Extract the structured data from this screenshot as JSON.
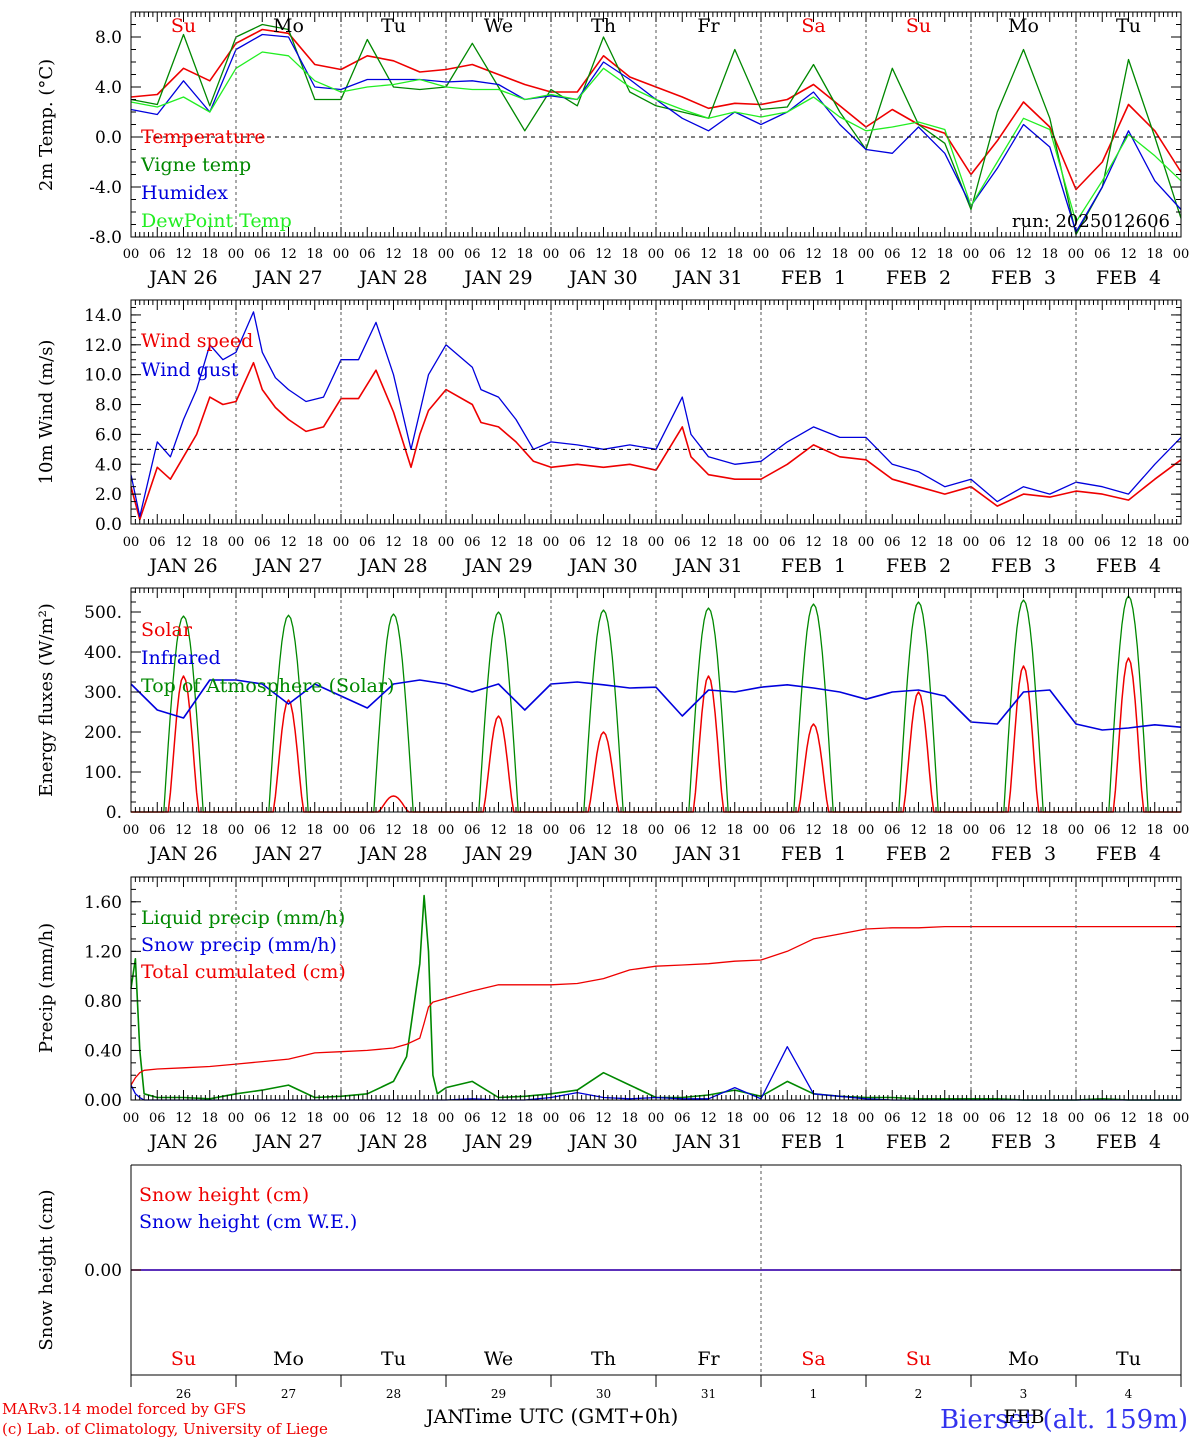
{
  "chart_data": [
    {
      "type": "line",
      "id": "temp",
      "ylabel": "2m Temp. (°C)",
      "ylim": [
        -8,
        10
      ],
      "yticks": [
        "-8.0",
        "-4.0",
        "0.0",
        "4.0",
        "8.0"
      ],
      "ytick_values": [
        -8,
        -4,
        0,
        4,
        8
      ],
      "ref_line": 0,
      "weekday_labels": true,
      "run_label": "run: 2025012606",
      "x_hours": [
        0,
        6,
        12,
        18,
        24,
        30,
        36,
        42,
        48,
        54,
        60,
        66,
        72,
        78,
        84,
        90,
        96,
        102,
        108,
        114,
        120,
        126,
        132,
        138,
        144,
        150,
        156,
        162,
        168,
        174,
        180,
        186,
        192,
        198,
        204,
        210,
        216,
        222,
        228,
        234,
        240
      ],
      "series": [
        {
          "name": "Temperature",
          "color": "#ee0000",
          "values": [
            3.2,
            3.4,
            5.5,
            4.5,
            7.5,
            8.6,
            8.3,
            5.8,
            5.4,
            6.5,
            6.1,
            5.2,
            5.4,
            5.8,
            5.0,
            4.2,
            3.6,
            3.6,
            6.5,
            4.8,
            4.0,
            3.2,
            2.3,
            2.7,
            2.6,
            3.0,
            4.2,
            2.5,
            0.8,
            2.2,
            1.0,
            0.3,
            -3.0,
            -0.3,
            2.8,
            0.8,
            -4.2,
            -2.0,
            2.6,
            0.5,
            -2.8
          ]
        },
        {
          "name": "Vigne temp",
          "color": "#008800",
          "values": [
            3.0,
            2.6,
            8.2,
            2.5,
            8.0,
            9.0,
            8.6,
            3.0,
            3.0,
            7.8,
            4.0,
            3.8,
            4.0,
            7.5,
            4.0,
            0.5,
            3.8,
            2.5,
            8.0,
            3.6,
            2.5,
            2.0,
            1.5,
            7.0,
            2.2,
            2.4,
            5.8,
            2.0,
            -1.0,
            5.5,
            1.0,
            -0.5,
            -5.8,
            2.0,
            7.0,
            1.5,
            -7.8,
            -4.0,
            6.2,
            0.0,
            -6.5
          ]
        },
        {
          "name": "Humidex",
          "color": "#0000dd",
          "values": [
            2.2,
            1.8,
            4.5,
            2.0,
            7.0,
            8.2,
            8.0,
            4.0,
            3.8,
            4.6,
            4.6,
            4.6,
            4.4,
            4.5,
            4.2,
            3.0,
            3.3,
            3.0,
            6.0,
            4.6,
            3.0,
            1.5,
            0.5,
            2.0,
            1.0,
            2.0,
            3.6,
            1.0,
            -1.0,
            -1.3,
            0.8,
            -1.3,
            -5.5,
            -2.5,
            1.0,
            -0.8,
            -7.6,
            -4.0,
            0.5,
            -3.5,
            -5.8
          ]
        },
        {
          "name": "DewPoint Temp",
          "color": "#22ee22",
          "values": [
            2.8,
            2.4,
            3.2,
            2.0,
            5.5,
            6.8,
            6.5,
            4.5,
            3.6,
            4.0,
            4.2,
            4.6,
            4.0,
            3.8,
            3.8,
            3.0,
            3.4,
            3.0,
            5.5,
            4.0,
            3.0,
            2.2,
            1.5,
            2.0,
            1.6,
            2.0,
            3.2,
            1.6,
            0.5,
            0.8,
            1.2,
            0.6,
            -5.5,
            -2.0,
            1.5,
            0.6,
            -6.8,
            -3.5,
            0.2,
            -1.5,
            -3.5
          ]
        }
      ]
    },
    {
      "type": "line",
      "id": "wind",
      "ylabel": "10m Wind (m/s)",
      "ylim": [
        0,
        15
      ],
      "yticks": [
        "0.0",
        "2.0",
        "4.0",
        "6.0",
        "8.0",
        "10.0",
        "12.0",
        "14.0"
      ],
      "ytick_values": [
        0,
        2,
        4,
        6,
        8,
        10,
        12,
        14
      ],
      "ref_line": 5,
      "x_hours": [
        0,
        2,
        6,
        9,
        12,
        15,
        18,
        21,
        24,
        28,
        30,
        33,
        36,
        40,
        44,
        48,
        52,
        56,
        60,
        64,
        66,
        68,
        72,
        78,
        80,
        84,
        88,
        92,
        96,
        102,
        108,
        114,
        120,
        126,
        128,
        132,
        138,
        144,
        150,
        156,
        162,
        168,
        174,
        180,
        186,
        192,
        198,
        204,
        210,
        216,
        222,
        228,
        234,
        240
      ],
      "series": [
        {
          "name": "Wind speed",
          "color": "#ee0000",
          "values": [
            2.5,
            0.3,
            3.8,
            3.0,
            4.5,
            6.0,
            8.5,
            8.0,
            8.2,
            10.8,
            9.0,
            7.8,
            7.0,
            6.2,
            6.5,
            8.4,
            8.4,
            10.3,
            7.5,
            3.8,
            6.0,
            7.6,
            9.0,
            8.0,
            6.8,
            6.5,
            5.5,
            4.2,
            3.8,
            4.0,
            3.8,
            4.0,
            3.6,
            6.5,
            4.5,
            3.3,
            3.0,
            3.0,
            4.0,
            5.3,
            4.5,
            4.3,
            3.0,
            2.5,
            2.0,
            2.5,
            1.2,
            2.0,
            1.8,
            2.2,
            2.0,
            1.6,
            3.0,
            4.3
          ]
        },
        {
          "name": "Wind gust",
          "color": "#0000dd",
          "values": [
            3.3,
            0.5,
            5.5,
            4.5,
            7.0,
            9.0,
            12.0,
            11.0,
            11.5,
            14.2,
            11.5,
            9.8,
            9.0,
            8.2,
            8.5,
            11.0,
            11.0,
            13.5,
            10.0,
            5.0,
            7.5,
            10.0,
            12.0,
            10.5,
            9.0,
            8.5,
            7.0,
            5.0,
            5.5,
            5.3,
            5.0,
            5.3,
            5.0,
            8.5,
            6.0,
            4.5,
            4.0,
            4.2,
            5.5,
            6.5,
            5.8,
            5.8,
            4.0,
            3.5,
            2.5,
            3.0,
            1.5,
            2.5,
            2.0,
            2.8,
            2.5,
            2.0,
            4.0,
            5.8
          ]
        }
      ]
    },
    {
      "type": "line",
      "id": "energy",
      "ylabel": "Energy fluxes (W/m²)",
      "ylim": [
        0,
        560
      ],
      "yticks": [
        "0.",
        "100.",
        "200.",
        "300.",
        "400.",
        "500."
      ],
      "ytick_values": [
        0,
        100,
        200,
        300,
        400,
        500
      ],
      "daily_peaks": {
        "toa": [
          490,
          492,
          495,
          500,
          505,
          510,
          520,
          525,
          530,
          540
        ],
        "solar": [
          340,
          280,
          40,
          240,
          200,
          340,
          220,
          300,
          365,
          385
        ]
      },
      "x_hours": [
        0,
        6,
        12,
        18,
        24,
        30,
        36,
        42,
        48,
        54,
        60,
        66,
        72,
        78,
        84,
        90,
        96,
        102,
        108,
        114,
        120,
        126,
        132,
        138,
        144,
        150,
        156,
        162,
        168,
        174,
        180,
        186,
        192,
        198,
        204,
        210,
        216,
        222,
        228,
        234,
        240
      ],
      "series": [
        {
          "name": "Solar",
          "color": "#ee0000"
        },
        {
          "name": "Infrared",
          "color": "#0000dd",
          "values": [
            320,
            255,
            235,
            330,
            330,
            320,
            270,
            320,
            290,
            260,
            320,
            330,
            320,
            300,
            320,
            255,
            320,
            325,
            318,
            310,
            312,
            240,
            305,
            300,
            312,
            318,
            310,
            300,
            282,
            300,
            305,
            290,
            225,
            220,
            300,
            305,
            220,
            205,
            210,
            218,
            212
          ]
        },
        {
          "name": "Top of Atmosphere (Solar)",
          "color": "#008800"
        }
      ]
    },
    {
      "type": "line",
      "id": "precip",
      "ylabel": "Precip (mm/h)",
      "ylim": [
        0,
        1.8
      ],
      "yticks": [
        "0.00",
        "0.40",
        "0.80",
        "1.20",
        "1.60"
      ],
      "ytick_values": [
        0,
        0.4,
        0.8,
        1.2,
        1.6
      ],
      "x_hours": [
        0,
        1,
        2,
        3,
        6,
        12,
        18,
        24,
        30,
        36,
        42,
        48,
        54,
        60,
        63,
        66,
        67,
        68,
        69,
        70,
        72,
        78,
        84,
        90,
        96,
        102,
        108,
        114,
        120,
        126,
        132,
        138,
        144,
        150,
        156,
        162,
        168,
        174,
        180,
        186,
        192,
        198,
        204,
        210,
        216,
        222,
        228,
        234,
        240
      ],
      "series": [
        {
          "name": "Liquid precip (mm/h)",
          "color": "#008800",
          "values": [
            0.9,
            1.14,
            0.4,
            0.05,
            0.02,
            0.02,
            0.01,
            0.05,
            0.08,
            0.12,
            0.02,
            0.03,
            0.05,
            0.15,
            0.35,
            1.1,
            1.65,
            1.2,
            0.2,
            0.05,
            0.1,
            0.15,
            0.02,
            0.03,
            0.05,
            0.08,
            0.22,
            0.12,
            0.02,
            0.02,
            0.04,
            0.08,
            0.03,
            0.15,
            0.05,
            0.03,
            0.02,
            0.02,
            0.01,
            0.01,
            0.01,
            0.01,
            0.0,
            0.0,
            0.0,
            0.01,
            0.0,
            0.0,
            0.0
          ]
        },
        {
          "name": "Snow precip (mm/h)",
          "color": "#0000dd",
          "values": [
            0.12,
            0.05,
            0.02,
            0.0,
            0.0,
            0.0,
            0.0,
            0.0,
            0.0,
            0.0,
            0.0,
            0.0,
            0.0,
            0.0,
            0.0,
            0.0,
            0.0,
            0.0,
            0.0,
            0.0,
            0.0,
            0.01,
            0.0,
            0.0,
            0.02,
            0.06,
            0.02,
            0.01,
            0.02,
            0.01,
            0.01,
            0.1,
            0.01,
            0.43,
            0.05,
            0.03,
            0.01,
            0.0,
            0.0,
            0.0,
            0.0,
            0.0,
            0.0,
            0.0,
            0.0,
            0.0,
            0.0,
            0.0,
            0.0
          ]
        },
        {
          "name": "Total cumulated (cm)",
          "color": "#ee0000",
          "values": [
            0.12,
            0.18,
            0.22,
            0.24,
            0.25,
            0.26,
            0.27,
            0.29,
            0.31,
            0.33,
            0.38,
            0.39,
            0.4,
            0.42,
            0.45,
            0.5,
            0.62,
            0.75,
            0.79,
            0.8,
            0.82,
            0.88,
            0.93,
            0.93,
            0.93,
            0.94,
            0.98,
            1.05,
            1.08,
            1.09,
            1.1,
            1.12,
            1.13,
            1.2,
            1.3,
            1.34,
            1.38,
            1.39,
            1.39,
            1.4,
            1.4,
            1.4,
            1.4,
            1.4,
            1.4,
            1.4,
            1.4,
            1.4,
            1.4
          ]
        }
      ]
    },
    {
      "type": "line",
      "id": "snow",
      "ylabel": "Snow height (cm)",
      "ylim": [
        -1,
        1
      ],
      "yticks": [
        "0.00"
      ],
      "ytick_values": [
        0
      ],
      "x_hours": [
        0,
        240
      ],
      "series": [
        {
          "name": "Snow height (cm)",
          "color": "#ee0000",
          "values": [
            0,
            0
          ]
        },
        {
          "name": "Snow height (cm W.E.)",
          "color": "#0000dd",
          "values": [
            0,
            0
          ]
        }
      ]
    }
  ],
  "axis": {
    "day_labels": [
      "JAN 26",
      "JAN 27",
      "JAN 28",
      "JAN 29",
      "JAN 30",
      "JAN 31",
      "FEB  1",
      "FEB  2",
      "FEB  3",
      "FEB  4"
    ],
    "hour_labels": [
      "00",
      "06",
      "12",
      "18"
    ],
    "weekdays": [
      "Su",
      "Mo",
      "Tu",
      "We",
      "Th",
      "Fr",
      "Sa",
      "Su",
      "Mo",
      "Tu"
    ],
    "weekday_colors": [
      "#ee0000",
      "#000000",
      "#000000",
      "#000000",
      "#000000",
      "#000000",
      "#ee0000",
      "#ee0000",
      "#000000",
      "#000000"
    ],
    "bottom_days": [
      "26",
      "27",
      "28",
      "29",
      "30",
      "31",
      "1",
      "2",
      "3",
      "4"
    ],
    "month_left": "JAN",
    "month_right": "FEB",
    "xlabel": "Time UTC (GMT+0h)"
  },
  "footer": {
    "credit_line1": "MARv3.14 model forced by GFS",
    "credit_line2": "(c) Lab. of Climatology, University of Liege",
    "station": "Bierset (alt. 159m)"
  }
}
